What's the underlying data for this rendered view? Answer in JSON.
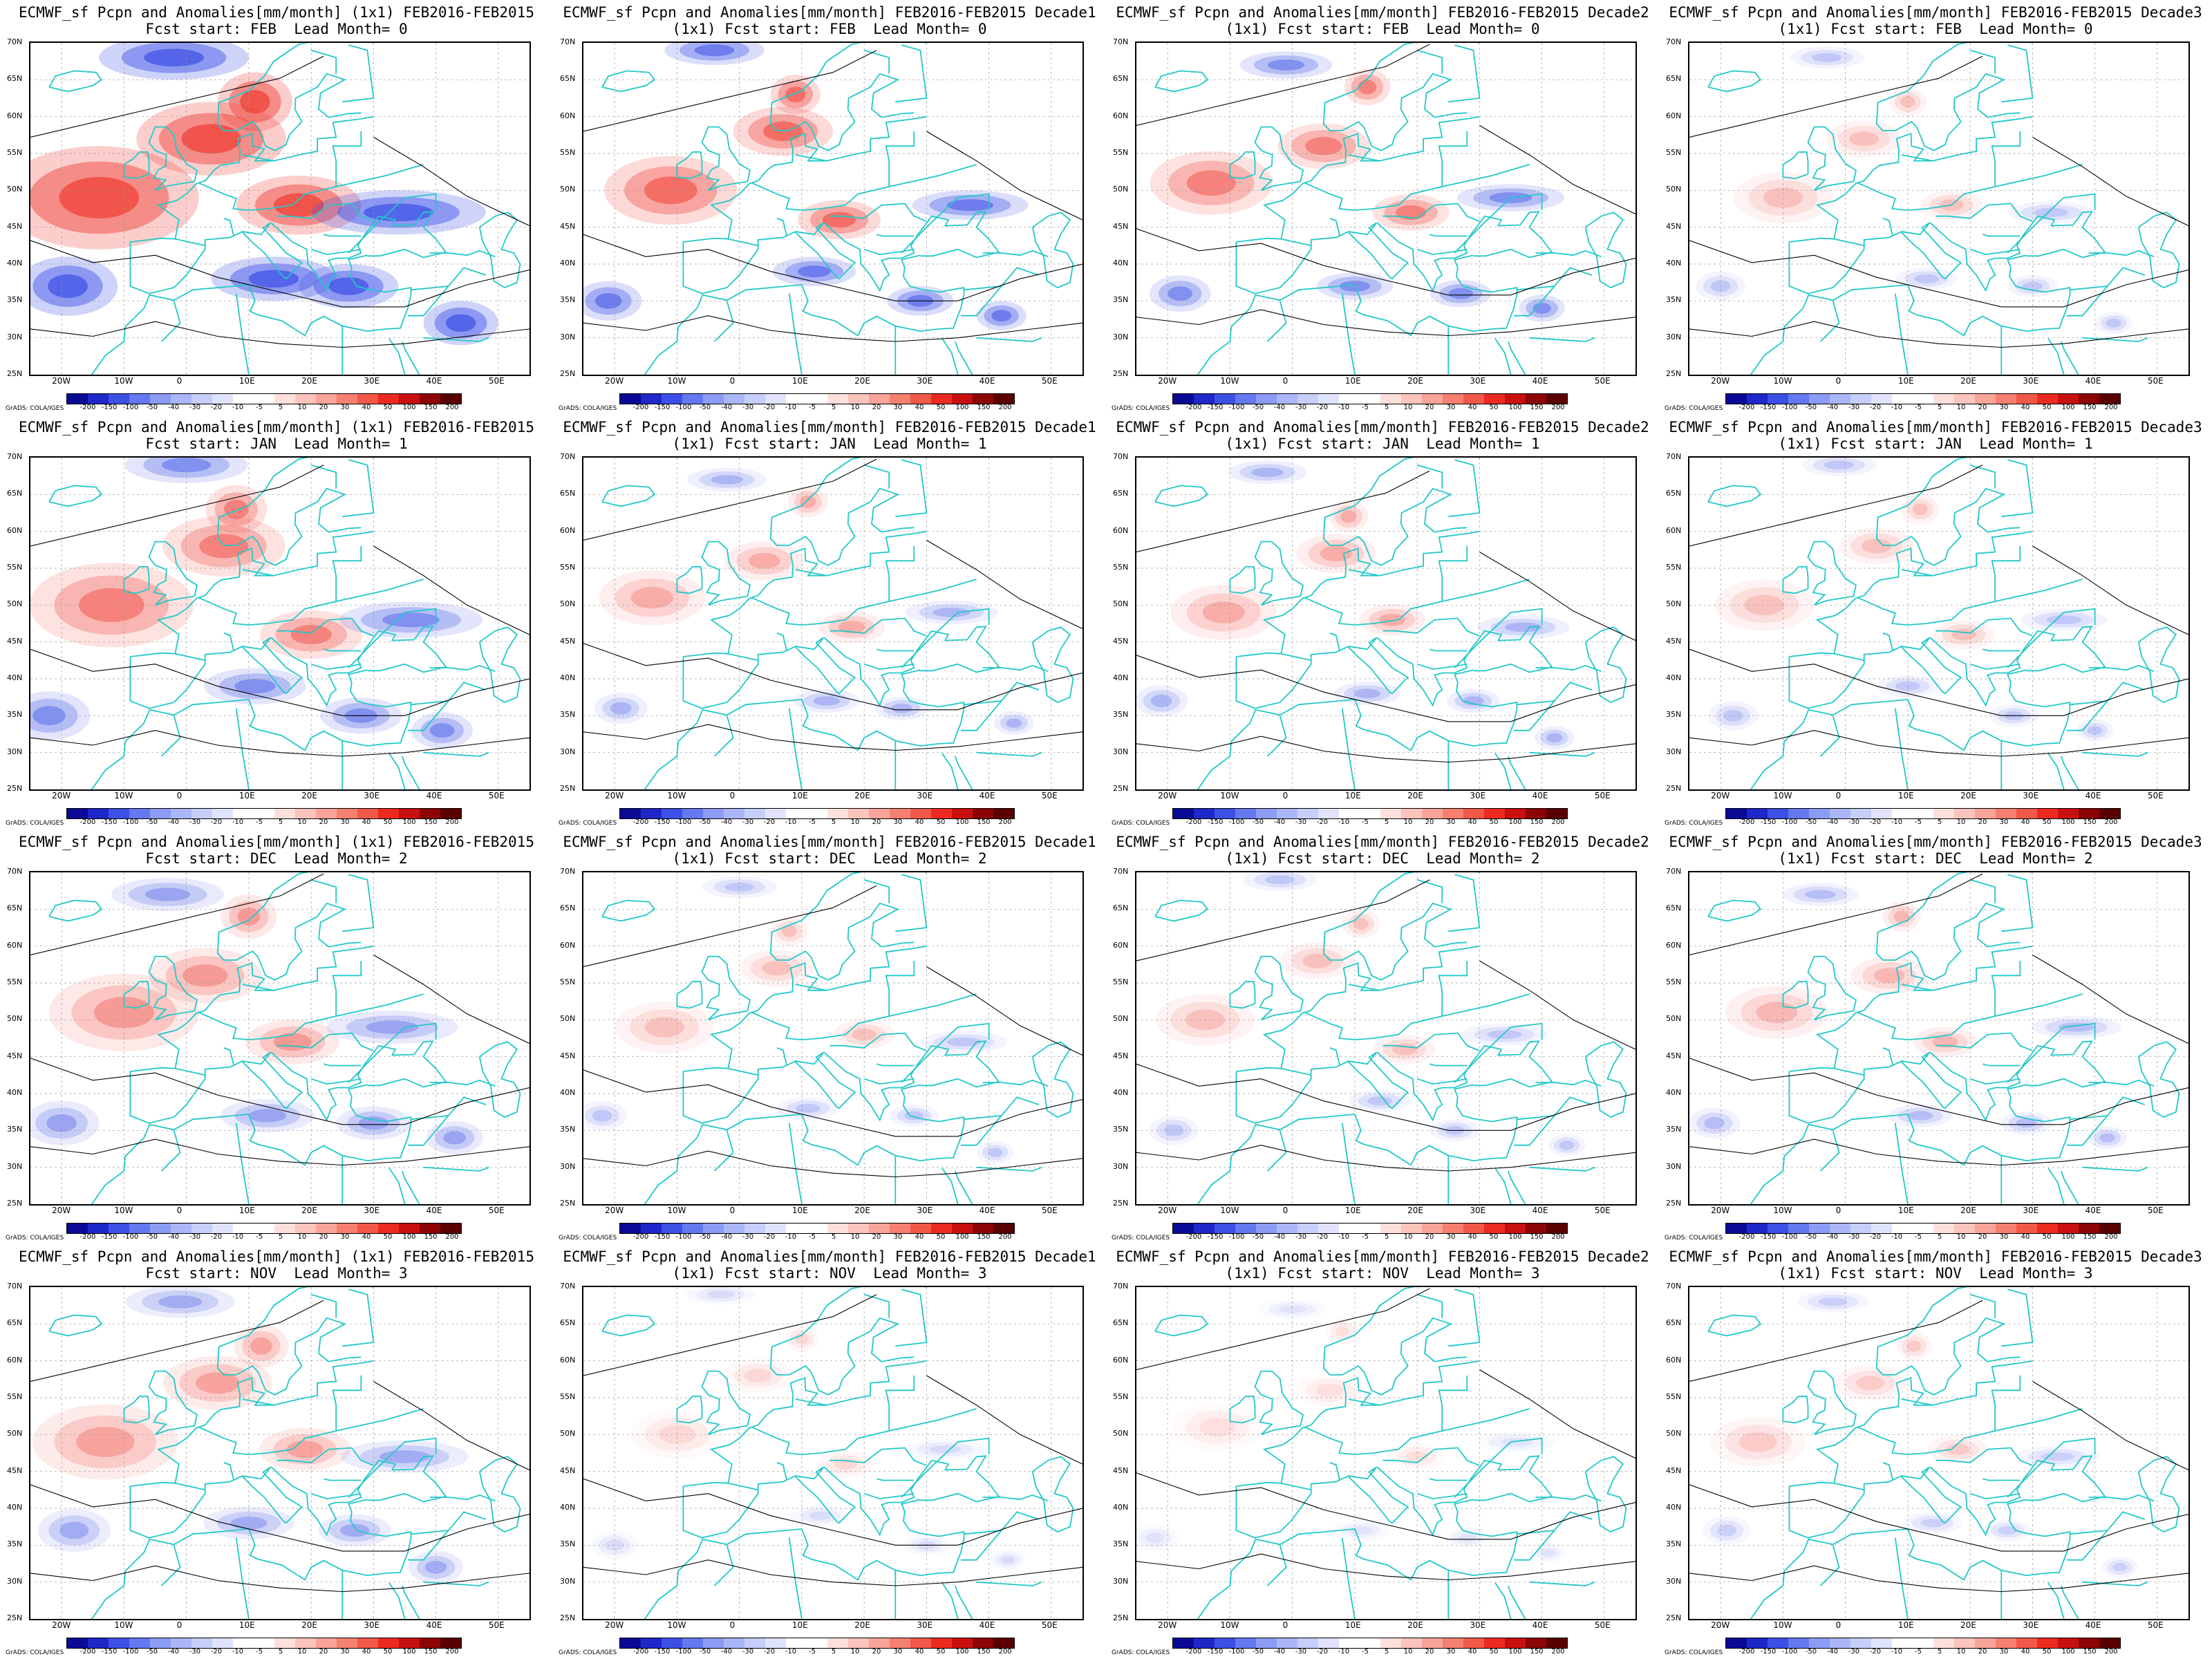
{
  "panels": [
    {
      "title1": "ECMWF_sf Pcpn and Anomalies[mm/month] (1x1) FEB2016-FEB2015",
      "title2": "Fcst start: FEB  Lead Month= 0",
      "intensity": 1.0
    },
    {
      "title1": "ECMWF_sf Pcpn and Anomalies[mm/month] FEB2016-FEB2015 Decade1",
      "title2": "(1x1) Fcst start: FEB  Lead Month= 0",
      "intensity": 0.75
    },
    {
      "title1": "ECMWF_sf Pcpn and Anomalies[mm/month] FEB2016-FEB2015 Decade2",
      "title2": "(1x1) Fcst start: FEB  Lead Month= 0",
      "intensity": 0.6
    },
    {
      "title1": "ECMWF_sf Pcpn and Anomalies[mm/month] FEB2016-FEB2015 Decade3",
      "title2": "(1x1) Fcst start: FEB  Lead Month= 0",
      "intensity": 0.25
    },
    {
      "title1": "ECMWF_sf Pcpn and Anomalies[mm/month] (1x1) FEB2016-FEB2015",
      "title2": "Fcst start: JAN  Lead Month= 1",
      "intensity": 0.6
    },
    {
      "title1": "ECMWF_sf Pcpn and Anomalies[mm/month] FEB2016-FEB2015 Decade1",
      "title2": "(1x1) Fcst start: JAN  Lead Month= 1",
      "intensity": 0.35
    },
    {
      "title1": "ECMWF_sf Pcpn and Anomalies[mm/month] FEB2016-FEB2015 Decade2",
      "title2": "(1x1) Fcst start: JAN  Lead Month= 1",
      "intensity": 0.35
    },
    {
      "title1": "ECMWF_sf Pcpn and Anomalies[mm/month] FEB2016-FEB2015 Decade3",
      "title2": "(1x1) Fcst start: JAN  Lead Month= 1",
      "intensity": 0.25
    },
    {
      "title1": "ECMWF_sf Pcpn and Anomalies[mm/month] (1x1) FEB2016-FEB2015",
      "title2": "Fcst start: DEC  Lead Month= 2",
      "intensity": 0.45
    },
    {
      "title1": "ECMWF_sf Pcpn and Anomalies[mm/month] FEB2016-FEB2015 Decade1",
      "title2": "(1x1) Fcst start: DEC  Lead Month= 2",
      "intensity": 0.25
    },
    {
      "title1": "ECMWF_sf Pcpn and Anomalies[mm/month] FEB2016-FEB2015 Decade2",
      "title2": "(1x1) Fcst start: DEC  Lead Month= 2",
      "intensity": 0.25
    },
    {
      "title1": "ECMWF_sf Pcpn and Anomalies[mm/month] FEB2016-FEB2015 Decade3",
      "title2": "(1x1) Fcst start: DEC  Lead Month= 2",
      "intensity": 0.3
    },
    {
      "title1": "ECMWF_sf Pcpn and Anomalies[mm/month] (1x1) FEB2016-FEB2015",
      "title2": "Fcst start: NOV  Lead Month= 3",
      "intensity": 0.4
    },
    {
      "title1": "ECMWF_sf Pcpn and Anomalies[mm/month] FEB2016-FEB2015 Decade1",
      "title2": "(1x1) Fcst start: NOV  Lead Month= 3",
      "intensity": 0.15
    },
    {
      "title1": "ECMWF_sf Pcpn and Anomalies[mm/month] FEB2016-FEB2015 Decade2",
      "title2": "(1x1) Fcst start: NOV  Lead Month= 3",
      "intensity": 0.12
    },
    {
      "title1": "ECMWF_sf Pcpn and Anomalies[mm/month] FEB2016-FEB2015 Decade3",
      "title2": "(1x1) Fcst start: NOV  Lead Month= 3",
      "intensity": 0.2
    }
  ],
  "lat_labels": [
    "70N",
    "65N",
    "60N",
    "55N",
    "50N",
    "45N",
    "40N",
    "35N",
    "30N",
    "25N"
  ],
  "lon_labels": [
    "20W",
    "10W",
    "0",
    "10E",
    "20E",
    "30E",
    "40E",
    "50E"
  ],
  "colorbar": {
    "labels": [
      "-200",
      "-150",
      "-100",
      "-50",
      "-40",
      "-30",
      "-20",
      "-10",
      "-5",
      "5",
      "10",
      "20",
      "30",
      "40",
      "50",
      "100",
      "150",
      "200"
    ],
    "colors": [
      "#0a0a96",
      "#1e28c8",
      "#3c50e6",
      "#6478f0",
      "#8c9cf5",
      "#aab6f8",
      "#c6cefa",
      "#dfe4fc",
      "#ffffff",
      "#ffffff",
      "#fde0dc",
      "#fbc4bc",
      "#f8a498",
      "#f58070",
      "#f25848",
      "#ec2a20",
      "#c81010",
      "#8c0404",
      "#5a0000"
    ]
  },
  "credit": "GrADS: COLA/IGES",
  "colors": {
    "coast": "#22c8c8",
    "contour": "#000000",
    "grid": "#999999"
  }
}
